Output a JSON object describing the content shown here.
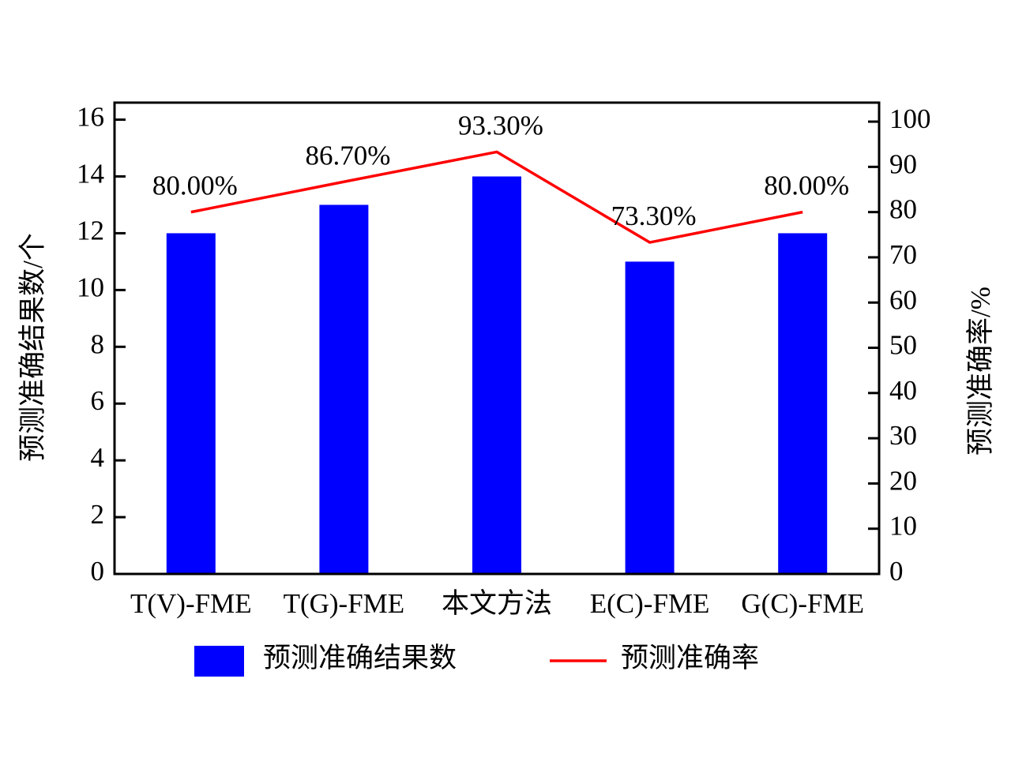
{
  "chart_data": {
    "type": "bar",
    "categories": [
      "T(V)-FME",
      "T(G)-FME",
      "本文方法",
      "E(C)-FME",
      "G(C)-FME"
    ],
    "series": [
      {
        "name": "预测准确结果数",
        "type": "bar",
        "color": "#0000ff",
        "values": [
          12,
          13,
          14,
          11,
          12
        ]
      },
      {
        "name": "预测准确率",
        "type": "line",
        "axis": "y2",
        "color": "#ff0000",
        "values": [
          80,
          86.7,
          93.3,
          73.3,
          80
        ],
        "value_labels": [
          "80.00%",
          "86.70%",
          "93.30%",
          "73.30%",
          "80.00%"
        ]
      }
    ],
    "y_label": "预测准确结果数/个",
    "y2_label": "预测准确率/%",
    "ylim": [
      0,
      16.6
    ],
    "yticks": [
      0,
      2,
      4,
      6,
      8,
      10,
      12,
      14,
      16
    ],
    "y2lim": [
      0,
      104.2
    ],
    "y2ticks": [
      0,
      10,
      20,
      30,
      40,
      50,
      60,
      70,
      80,
      90,
      100
    ],
    "legend": "bottom"
  }
}
